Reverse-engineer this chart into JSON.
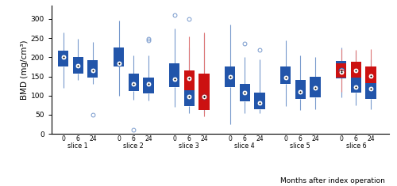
{
  "title_ylabel": "BMD (mg/cm³)",
  "xlabel": "Months after index operation",
  "slices": [
    "slice 1",
    "slice 2",
    "slice 3",
    "slice 4",
    "slice 5",
    "slice 6"
  ],
  "timepoints": [
    "0",
    "6",
    "24"
  ],
  "blue_color": "#2255aa",
  "blue_light": "#7799cc",
  "red_color": "#cc1111",
  "red_light": "#dd7777",
  "ylim": [
    0,
    335
  ],
  "yticks": [
    0,
    50,
    100,
    150,
    200,
    250,
    300
  ],
  "box_data": {
    "prosthetic": {
      "slice1": {
        "t0": {
          "whislo": 120,
          "q1": 175,
          "med": 200,
          "q3": 218,
          "whishi": 265,
          "fliers": []
        },
        "t6": {
          "whislo": 140,
          "q1": 158,
          "med": 178,
          "q3": 200,
          "whishi": 248,
          "fliers": []
        },
        "t24": {
          "whislo": 130,
          "q1": 147,
          "med": 165,
          "q3": 192,
          "whishi": 240,
          "fliers": [
            50
          ]
        }
      },
      "slice2": {
        "t0": {
          "whislo": 100,
          "q1": 175,
          "med": 185,
          "q3": 225,
          "whishi": 295,
          "fliers": []
        },
        "t6": {
          "whislo": 90,
          "q1": 112,
          "med": 130,
          "q3": 158,
          "whishi": 205,
          "fliers": [
            10
          ]
        },
        "t24": {
          "whislo": 88,
          "q1": 105,
          "med": 130,
          "q3": 148,
          "whishi": 205,
          "fliers": [
            245,
            248
          ]
        }
      },
      "slice3": {
        "t0": {
          "whislo": 70,
          "q1": 122,
          "med": 142,
          "q3": 185,
          "whishi": 275,
          "fliers": [
            310
          ]
        },
        "t6": {
          "whislo": 55,
          "q1": 72,
          "med": 97,
          "q3": 132,
          "whishi": 225,
          "fliers": [
            300
          ]
        },
        "t24": {
          "whislo": 55,
          "q1": 68,
          "med": 97,
          "q3": 132,
          "whishi": 260,
          "fliers": []
        }
      },
      "slice4": {
        "t0": {
          "whislo": 25,
          "q1": 122,
          "med": 150,
          "q3": 175,
          "whishi": 285,
          "fliers": []
        },
        "t6": {
          "whislo": 55,
          "q1": 85,
          "med": 108,
          "q3": 130,
          "whishi": 200,
          "fliers": [
            235
          ]
        },
        "t24": {
          "whislo": 55,
          "q1": 65,
          "med": 80,
          "q3": 108,
          "whishi": 195,
          "fliers": [
            220
          ]
        }
      },
      "slice5": {
        "t0": {
          "whislo": 72,
          "q1": 130,
          "med": 148,
          "q3": 175,
          "whishi": 245,
          "fliers": []
        },
        "t6": {
          "whislo": 62,
          "q1": 92,
          "med": 110,
          "q3": 140,
          "whishi": 205,
          "fliers": []
        },
        "t24": {
          "whislo": 65,
          "q1": 95,
          "med": 120,
          "q3": 150,
          "whishi": 200,
          "fliers": []
        }
      },
      "slice6": {
        "t0": {
          "whislo": 95,
          "q1": 145,
          "med": 165,
          "q3": 190,
          "whishi": 225,
          "fliers": []
        },
        "t6": {
          "whislo": 75,
          "q1": 108,
          "med": 122,
          "q3": 148,
          "whishi": 215,
          "fliers": []
        },
        "t24": {
          "whislo": 65,
          "q1": 92,
          "med": 118,
          "q3": 145,
          "whishi": 195,
          "fliers": []
        }
      }
    },
    "contralateral": {
      "slice3": {
        "t6": {
          "whislo": 88,
          "q1": 115,
          "med": 145,
          "q3": 165,
          "whishi": 255,
          "fliers": []
        },
        "t24": {
          "whislo": 45,
          "q1": 62,
          "med": 97,
          "q3": 158,
          "whishi": 265,
          "fliers": []
        }
      },
      "slice6": {
        "t0": {
          "whislo": 110,
          "q1": 148,
          "med": 162,
          "q3": 185,
          "whishi": 222,
          "fliers": []
        },
        "t6": {
          "whislo": 115,
          "q1": 148,
          "med": 165,
          "q3": 188,
          "whishi": 220,
          "fliers": []
        },
        "t24": {
          "whislo": 102,
          "q1": 132,
          "med": 152,
          "q3": 175,
          "whishi": 222,
          "fliers": []
        }
      }
    }
  }
}
